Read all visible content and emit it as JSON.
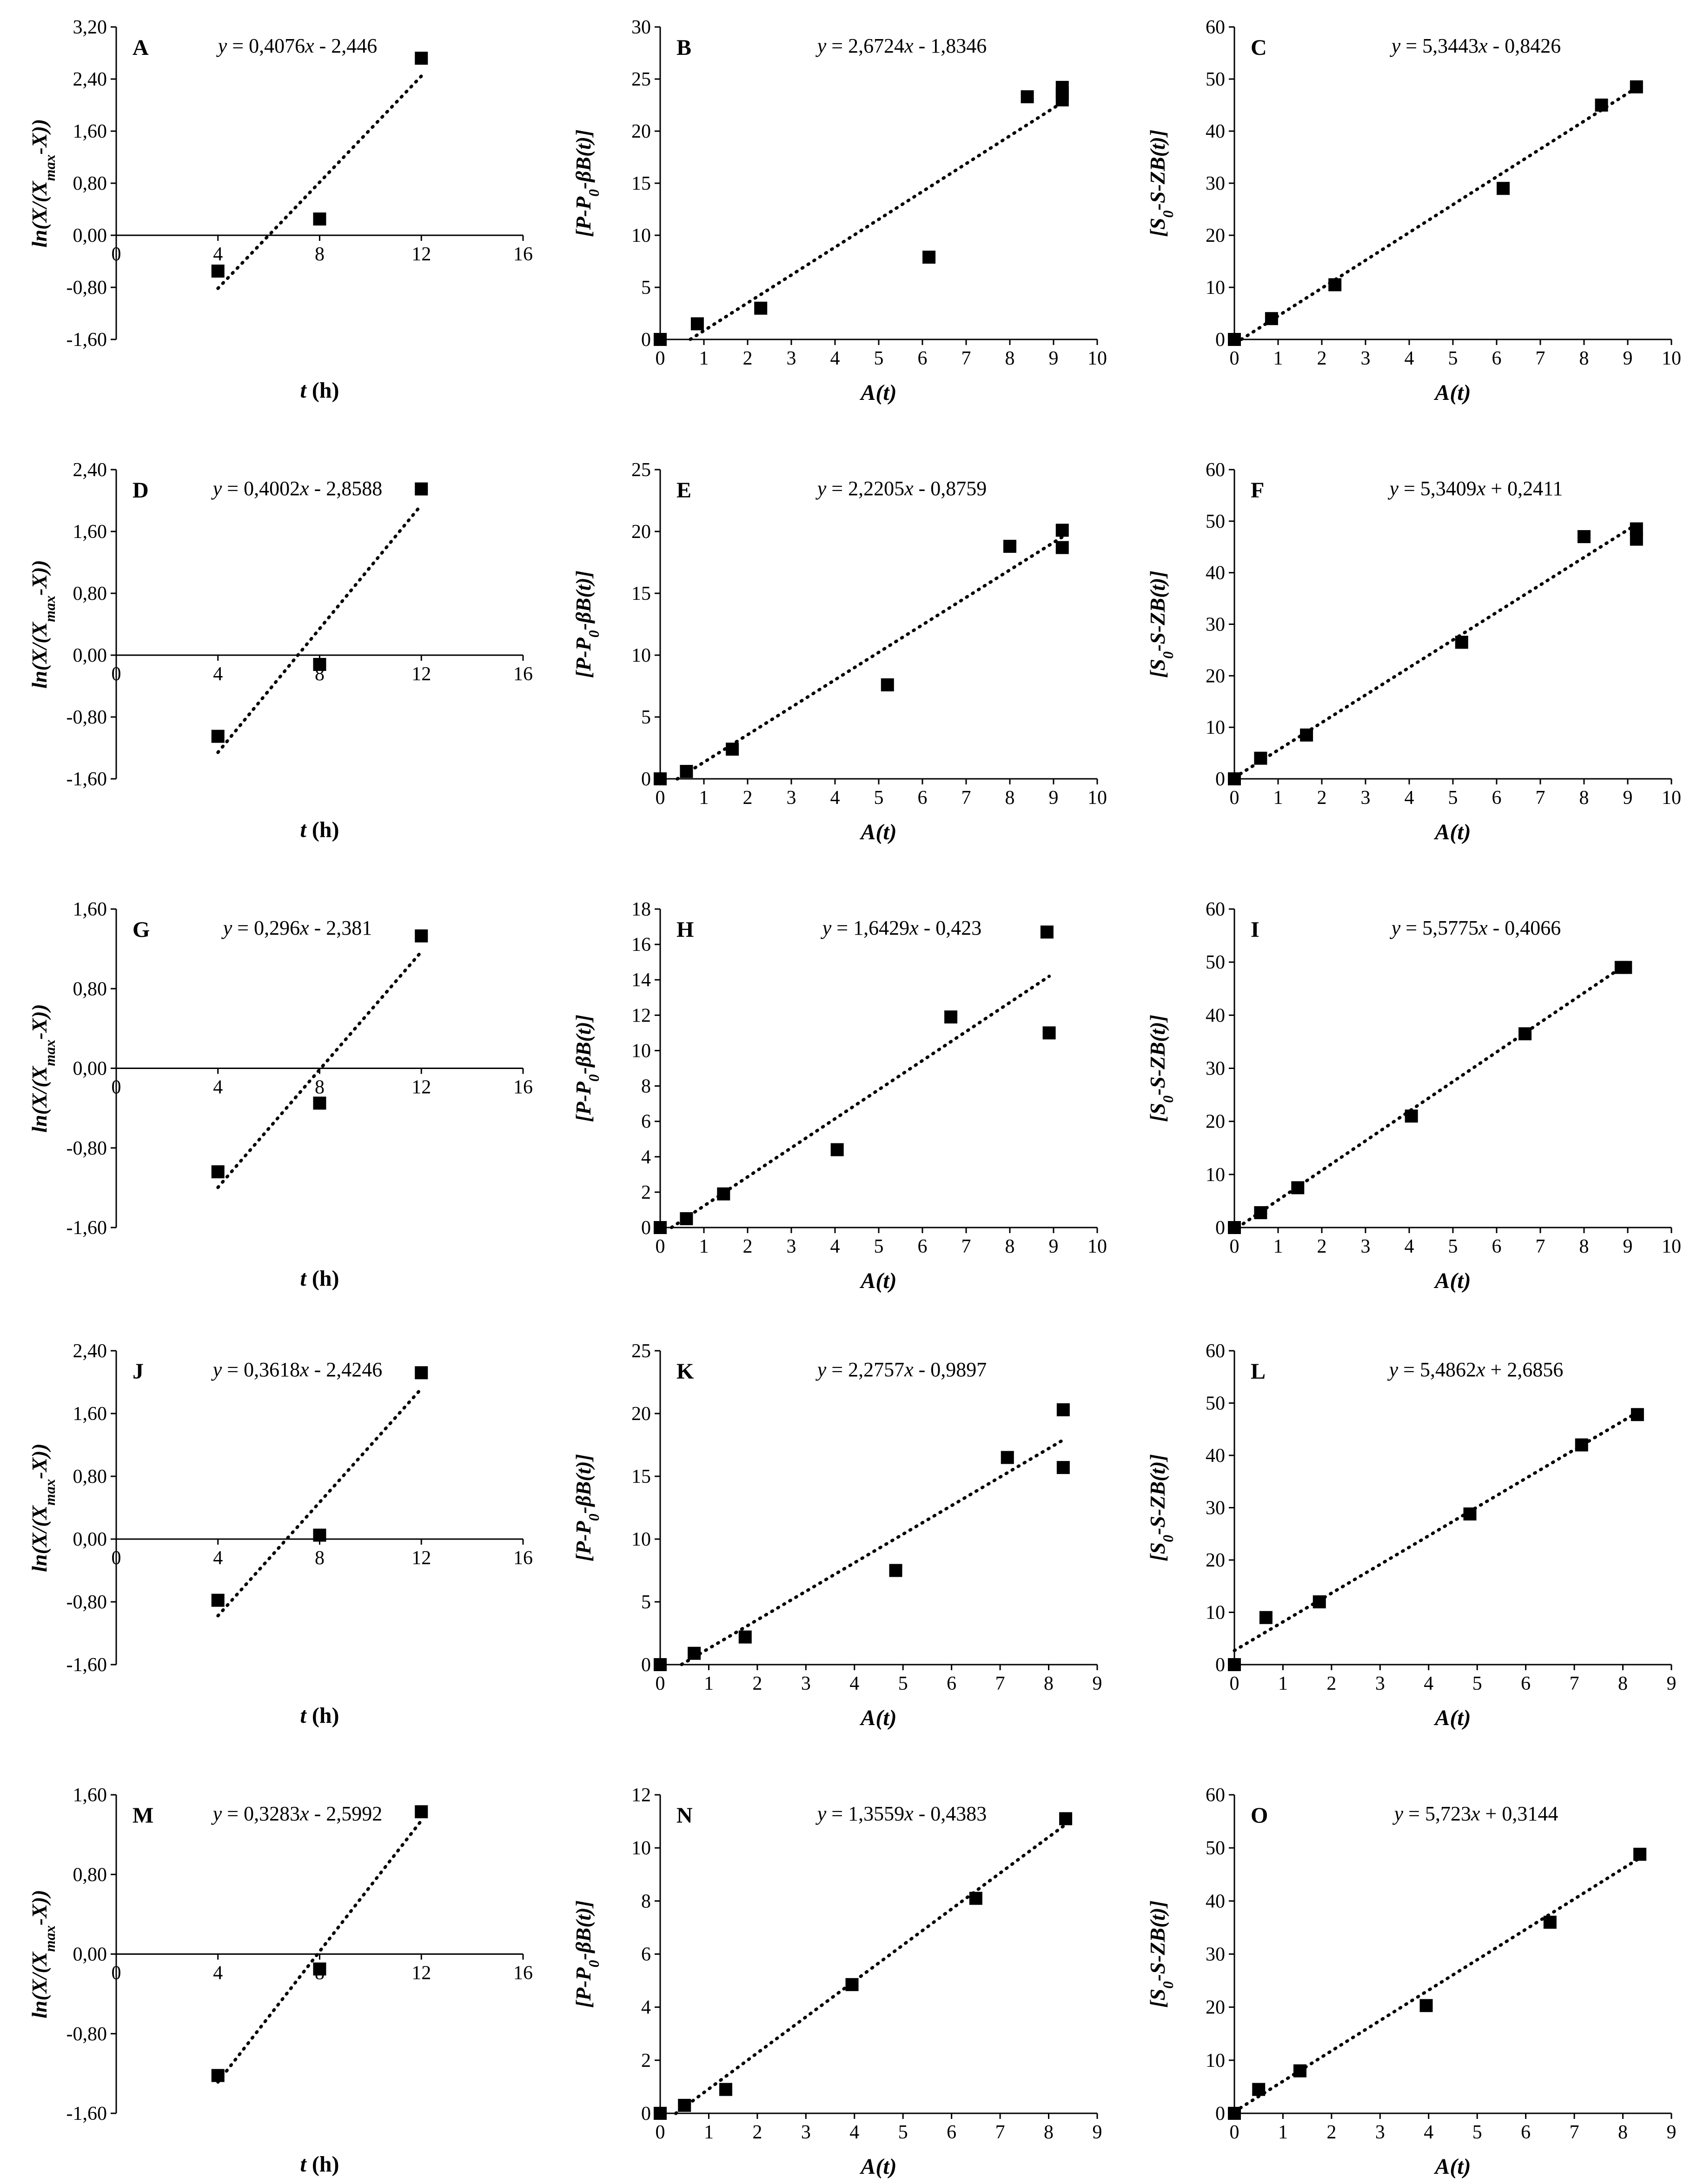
{
  "colors": {
    "ink": "#000000",
    "background": "#ffffff"
  },
  "chart_data": [
    {
      "id": "A",
      "type": "scatter",
      "kind": "ln",
      "equation": {
        "slope": "0,4076",
        "sign": "-",
        "intercept": "2,446"
      },
      "xlim": [
        0,
        16
      ],
      "ylim": [
        -1.6,
        3.2
      ],
      "xticks": [
        "0",
        "4",
        "8",
        "12",
        "16"
      ],
      "yticks": [
        "3,20",
        "2,40",
        "1,60",
        "0,80",
        "0,00",
        "-0,80",
        "-1,60"
      ],
      "points": [
        [
          4,
          -0.55
        ],
        [
          8,
          0.25
        ],
        [
          12,
          2.72
        ]
      ],
      "trend": {
        "slope": 0.4076,
        "intercept": -2.446,
        "x": [
          4,
          12
        ]
      }
    },
    {
      "id": "B",
      "type": "scatter",
      "kind": "P",
      "equation": {
        "slope": "2,6724",
        "sign": "-",
        "intercept": "1,8346"
      },
      "xlim": [
        0,
        10
      ],
      "ylim": [
        0,
        30
      ],
      "xticks": [
        "0",
        "1",
        "2",
        "3",
        "4",
        "5",
        "6",
        "7",
        "8",
        "9",
        "10"
      ],
      "yticks": [
        "30",
        "25",
        "20",
        "15",
        "10",
        "5",
        "0"
      ],
      "points": [
        [
          0,
          0
        ],
        [
          0.85,
          1.5
        ],
        [
          2.3,
          3.0
        ],
        [
          6.15,
          7.9
        ],
        [
          8.4,
          23.3
        ],
        [
          9.2,
          23.0
        ],
        [
          9.2,
          23.6
        ],
        [
          9.2,
          24.2
        ]
      ],
      "trend": {
        "slope": 2.6724,
        "intercept": -1.8346,
        "x": [
          0.69,
          9.2
        ]
      }
    },
    {
      "id": "C",
      "type": "scatter",
      "kind": "S",
      "equation": {
        "slope": "5,3443",
        "sign": "-",
        "intercept": "0,8426"
      },
      "xlim": [
        0,
        10
      ],
      "ylim": [
        0,
        60
      ],
      "xticks": [
        "0",
        "1",
        "2",
        "3",
        "4",
        "5",
        "6",
        "7",
        "8",
        "9",
        "10"
      ],
      "yticks": [
        "60",
        "50",
        "40",
        "30",
        "20",
        "10",
        "0"
      ],
      "points": [
        [
          0,
          0
        ],
        [
          0.85,
          4.0
        ],
        [
          2.3,
          10.5
        ],
        [
          6.15,
          29.0
        ],
        [
          8.4,
          45.0
        ],
        [
          9.2,
          48.5
        ]
      ],
      "trend": {
        "slope": 5.3443,
        "intercept": -0.8426,
        "x": [
          0.16,
          9.2
        ]
      }
    },
    {
      "id": "D",
      "type": "scatter",
      "kind": "ln",
      "equation": {
        "slope": "0,4002",
        "sign": "-",
        "intercept": "2,8588"
      },
      "xlim": [
        0,
        16
      ],
      "ylim": [
        -1.6,
        2.4
      ],
      "xticks": [
        "0",
        "4",
        "8",
        "12",
        "16"
      ],
      "yticks": [
        "2,40",
        "1,60",
        "0,80",
        "0,00",
        "-0,80",
        "-1,60"
      ],
      "points": [
        [
          4,
          -1.05
        ],
        [
          8,
          -0.12
        ],
        [
          12,
          2.15
        ]
      ],
      "trend": {
        "slope": 0.4002,
        "intercept": -2.8588,
        "x": [
          4,
          12
        ]
      }
    },
    {
      "id": "E",
      "type": "scatter",
      "kind": "P",
      "equation": {
        "slope": "2,2205",
        "sign": "-",
        "intercept": "0,8759"
      },
      "xlim": [
        0,
        10
      ],
      "ylim": [
        0,
        25
      ],
      "xticks": [
        "0",
        "1",
        "2",
        "3",
        "4",
        "5",
        "6",
        "7",
        "8",
        "9",
        "10"
      ],
      "yticks": [
        "25",
        "20",
        "15",
        "10",
        "5",
        "0"
      ],
      "points": [
        [
          0,
          0
        ],
        [
          0.6,
          0.6
        ],
        [
          1.65,
          2.4
        ],
        [
          5.2,
          7.6
        ],
        [
          8.0,
          18.8
        ],
        [
          9.2,
          18.7
        ],
        [
          9.2,
          20.1
        ]
      ],
      "trend": {
        "slope": 2.2205,
        "intercept": -0.8759,
        "x": [
          0.39,
          9.2
        ]
      }
    },
    {
      "id": "F",
      "type": "scatter",
      "kind": "S",
      "equation": {
        "slope": "5,3409",
        "sign": "+",
        "intercept": "0,2411"
      },
      "xlim": [
        0,
        10
      ],
      "ylim": [
        0,
        60
      ],
      "xticks": [
        "0",
        "1",
        "2",
        "3",
        "4",
        "5",
        "6",
        "7",
        "8",
        "9",
        "10"
      ],
      "yticks": [
        "60",
        "50",
        "40",
        "30",
        "20",
        "10",
        "0"
      ],
      "points": [
        [
          0,
          0
        ],
        [
          0.6,
          4.0
        ],
        [
          1.65,
          8.5
        ],
        [
          5.2,
          26.5
        ],
        [
          8.0,
          47.0
        ],
        [
          9.2,
          46.5
        ],
        [
          9.2,
          48.5
        ]
      ],
      "trend": {
        "slope": 5.3409,
        "intercept": 0.2411,
        "x": [
          0,
          9.2
        ]
      }
    },
    {
      "id": "G",
      "type": "scatter",
      "kind": "ln",
      "equation": {
        "slope": "0,296",
        "sign": "-",
        "intercept": "2,381"
      },
      "xlim": [
        0,
        16
      ],
      "ylim": [
        -1.6,
        1.6
      ],
      "xticks": [
        "0",
        "4",
        "8",
        "12",
        "16"
      ],
      "yticks": [
        "1,60",
        "0,80",
        "0,00",
        "-0,80",
        "-1,60"
      ],
      "points": [
        [
          4,
          -1.04
        ],
        [
          8,
          -0.35
        ],
        [
          12,
          1.33
        ]
      ],
      "trend": {
        "slope": 0.296,
        "intercept": -2.381,
        "x": [
          4,
          12
        ]
      }
    },
    {
      "id": "H",
      "type": "scatter",
      "kind": "P",
      "equation": {
        "slope": "1,6429",
        "sign": "-",
        "intercept": "0,423"
      },
      "xlim": [
        0,
        10
      ],
      "ylim": [
        0,
        18
      ],
      "xticks": [
        "0",
        "1",
        "2",
        "3",
        "4",
        "5",
        "6",
        "7",
        "8",
        "9",
        "10"
      ],
      "yticks": [
        "18",
        "16",
        "14",
        "12",
        "10",
        "8",
        "6",
        "4",
        "2",
        "0"
      ],
      "points": [
        [
          0,
          0
        ],
        [
          0.6,
          0.5
        ],
        [
          1.45,
          1.9
        ],
        [
          4.05,
          4.4
        ],
        [
          6.65,
          11.9
        ],
        [
          8.85,
          16.7
        ],
        [
          8.9,
          11.0
        ]
      ],
      "trend": {
        "slope": 1.6429,
        "intercept": -0.423,
        "x": [
          0.26,
          8.9
        ]
      }
    },
    {
      "id": "I",
      "type": "scatter",
      "kind": "S",
      "equation": {
        "slope": "5,5775",
        "sign": "-",
        "intercept": "0,4066"
      },
      "xlim": [
        0,
        10
      ],
      "ylim": [
        0,
        60
      ],
      "xticks": [
        "0",
        "1",
        "2",
        "3",
        "4",
        "5",
        "6",
        "7",
        "8",
        "9",
        "10"
      ],
      "yticks": [
        "60",
        "50",
        "40",
        "30",
        "20",
        "10",
        "0"
      ],
      "points": [
        [
          0,
          0
        ],
        [
          0.6,
          2.8
        ],
        [
          1.45,
          7.5
        ],
        [
          4.05,
          21.0
        ],
        [
          6.65,
          36.5
        ],
        [
          8.85,
          49.0
        ],
        [
          8.95,
          49.0
        ]
      ],
      "trend": {
        "slope": 5.5775,
        "intercept": -0.4066,
        "x": [
          0.07,
          8.95
        ]
      }
    },
    {
      "id": "J",
      "type": "scatter",
      "kind": "ln",
      "equation": {
        "slope": "0,3618",
        "sign": "-",
        "intercept": "2,4246"
      },
      "xlim": [
        0,
        16
      ],
      "ylim": [
        -1.6,
        2.4
      ],
      "xticks": [
        "0",
        "4",
        "8",
        "12",
        "16"
      ],
      "yticks": [
        "2,40",
        "1,60",
        "0,80",
        "0,00",
        "-0,80",
        "-1,60"
      ],
      "points": [
        [
          4,
          -0.78
        ],
        [
          8,
          0.05
        ],
        [
          12,
          2.12
        ]
      ],
      "trend": {
        "slope": 0.3618,
        "intercept": -2.4246,
        "x": [
          4,
          12
        ]
      }
    },
    {
      "id": "K",
      "type": "scatter",
      "kind": "P",
      "equation": {
        "slope": "2,2757",
        "sign": "-",
        "intercept": "0,9897"
      },
      "xlim": [
        0,
        9
      ],
      "ylim": [
        0,
        25
      ],
      "xticks": [
        "0",
        "1",
        "2",
        "3",
        "4",
        "5",
        "6",
        "7",
        "8",
        "9"
      ],
      "yticks": [
        "25",
        "20",
        "15",
        "10",
        "5",
        "0"
      ],
      "points": [
        [
          0,
          0
        ],
        [
          0.7,
          0.9
        ],
        [
          1.75,
          2.2
        ],
        [
          4.85,
          7.5
        ],
        [
          7.15,
          16.5
        ],
        [
          8.3,
          20.3
        ],
        [
          8.3,
          15.7
        ]
      ],
      "trend": {
        "slope": 2.2757,
        "intercept": -0.9897,
        "x": [
          0.44,
          8.3
        ]
      }
    },
    {
      "id": "L",
      "type": "scatter",
      "kind": "S",
      "equation": {
        "slope": "5,4862",
        "sign": "+",
        "intercept": "2,6856"
      },
      "xlim": [
        0,
        9
      ],
      "ylim": [
        0,
        60
      ],
      "xticks": [
        "0",
        "1",
        "2",
        "3",
        "4",
        "5",
        "6",
        "7",
        "8",
        "9"
      ],
      "yticks": [
        "60",
        "50",
        "40",
        "30",
        "20",
        "10",
        "0"
      ],
      "points": [
        [
          0,
          0
        ],
        [
          0.65,
          9.0
        ],
        [
          1.75,
          12.0
        ],
        [
          4.85,
          28.8
        ],
        [
          7.15,
          42.0
        ],
        [
          8.3,
          47.8
        ]
      ],
      "trend": {
        "slope": 5.4862,
        "intercept": 2.6856,
        "x": [
          0,
          8.3
        ]
      }
    },
    {
      "id": "M",
      "type": "scatter",
      "kind": "ln",
      "equation": {
        "slope": "0,3283",
        "sign": "-",
        "intercept": "2,5992"
      },
      "xlim": [
        0,
        16
      ],
      "ylim": [
        -1.6,
        1.6
      ],
      "xticks": [
        "0",
        "4",
        "8",
        "12",
        "16"
      ],
      "yticks": [
        "1,60",
        "0,80",
        "0,00",
        "-0,80",
        "-1,60"
      ],
      "points": [
        [
          4,
          -1.22
        ],
        [
          8,
          -0.15
        ],
        [
          12,
          1.43
        ]
      ],
      "trend": {
        "slope": 0.3283,
        "intercept": -2.5992,
        "x": [
          4,
          12
        ]
      }
    },
    {
      "id": "N",
      "type": "scatter",
      "kind": "P",
      "equation": {
        "slope": "1,3559",
        "sign": "-",
        "intercept": "0,4383"
      },
      "xlim": [
        0,
        9
      ],
      "ylim": [
        0,
        12
      ],
      "xticks": [
        "0",
        "1",
        "2",
        "3",
        "4",
        "5",
        "6",
        "7",
        "8",
        "9"
      ],
      "yticks": [
        "12",
        "10",
        "8",
        "6",
        "4",
        "2",
        "0"
      ],
      "points": [
        [
          0,
          0
        ],
        [
          0.5,
          0.3
        ],
        [
          1.35,
          0.9
        ],
        [
          3.95,
          4.85
        ],
        [
          6.5,
          8.1
        ],
        [
          8.35,
          11.1
        ]
      ],
      "trend": {
        "slope": 1.3559,
        "intercept": -0.4383,
        "x": [
          0.32,
          8.35
        ]
      }
    },
    {
      "id": "O",
      "type": "scatter",
      "kind": "S",
      "equation": {
        "slope": "5,723",
        "sign": "+",
        "intercept": "0,3144"
      },
      "xlim": [
        0,
        9
      ],
      "ylim": [
        0,
        60
      ],
      "xticks": [
        "0",
        "1",
        "2",
        "3",
        "4",
        "5",
        "6",
        "7",
        "8",
        "9"
      ],
      "yticks": [
        "60",
        "50",
        "40",
        "30",
        "20",
        "10",
        "0"
      ],
      "points": [
        [
          0,
          0
        ],
        [
          0.5,
          4.5
        ],
        [
          1.35,
          8.0
        ],
        [
          3.95,
          20.3
        ],
        [
          6.5,
          36.0
        ],
        [
          8.35,
          48.8
        ]
      ],
      "trend": {
        "slope": 5.723,
        "intercept": 0.3144,
        "x": [
          0,
          8.35
        ]
      }
    }
  ]
}
